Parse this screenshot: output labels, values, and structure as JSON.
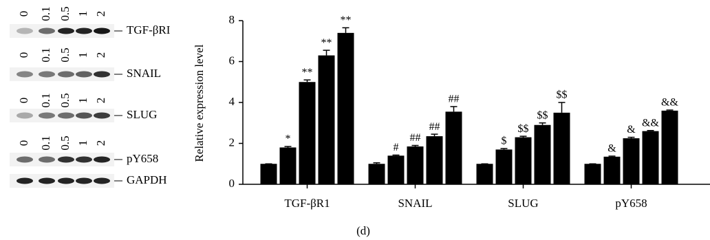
{
  "blots": [
    {
      "label": "TGF-βRI",
      "lanes": [
        "0",
        "0.1",
        "0.5",
        "1",
        "2"
      ]
    },
    {
      "label": "SNAIL",
      "lanes": [
        "0",
        "0.1",
        "0.5",
        "1",
        "2"
      ]
    },
    {
      "label": "SLUG",
      "lanes": [
        "0",
        "0.1",
        "0.5",
        "1",
        "2"
      ]
    },
    {
      "label": "pY658",
      "lanes": [
        "0",
        "0.1",
        "0.5",
        "1",
        "2"
      ]
    },
    {
      "label": "GAPDH"
    }
  ],
  "caption": "(d)",
  "chart_data": {
    "type": "bar",
    "y_label": "Relative expression level",
    "categories": [
      "TGF-βR1",
      "SNAIL",
      "SLUG",
      "pY658"
    ],
    "color": "#000000",
    "series": [
      {
        "values": [
          1,
          1,
          1,
          1
        ],
        "errors": [
          0,
          0.05,
          0,
          0
        ]
      },
      {
        "values": [
          1.8,
          1.4,
          1.7,
          1.35
        ],
        "errors": [
          0.05,
          0.03,
          0.05,
          0.03
        ],
        "annotations": [
          "*",
          "#",
          "$",
          "&"
        ]
      },
      {
        "values": [
          5.0,
          1.85,
          2.3,
          2.25
        ],
        "errors": [
          0.1,
          0.05,
          0.05,
          0.05
        ],
        "annotations": [
          "**",
          "##",
          "$$",
          "&"
        ]
      },
      {
        "values": [
          6.3,
          2.35,
          2.9,
          2.6
        ],
        "errors": [
          0.25,
          0.1,
          0.1,
          0.03
        ],
        "annotations": [
          "**",
          "##",
          "$$",
          "&&"
        ]
      },
      {
        "values": [
          7.4,
          3.55,
          3.5,
          3.6
        ],
        "errors": [
          0.25,
          0.25,
          0.5,
          0.03
        ],
        "annotations": [
          "**",
          "##",
          "$$",
          "&&"
        ]
      }
    ],
    "ylim": [
      0,
      8
    ],
    "yticks": [
      0,
      2,
      4,
      6,
      8
    ]
  }
}
